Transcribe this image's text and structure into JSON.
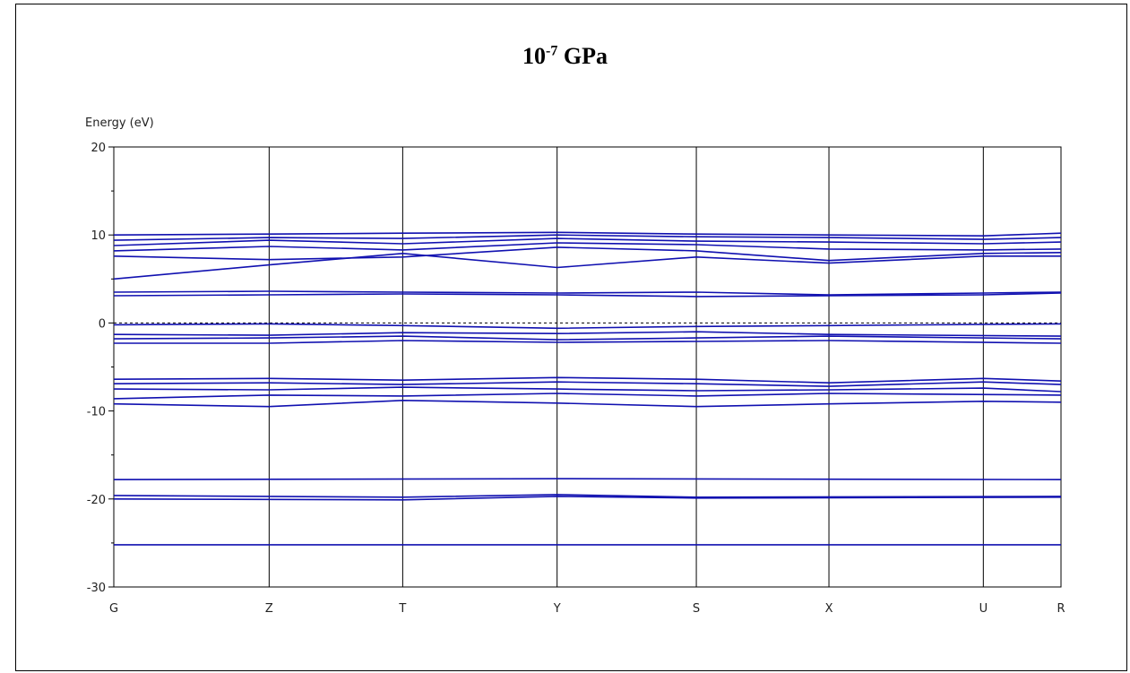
{
  "chart_data": {
    "type": "line",
    "title_base": "10",
    "title_exp": "-7",
    "title_unit": "GPa",
    "ylabel": "Energy (eV)",
    "ylim": [
      -30,
      20
    ],
    "yticks": [
      20,
      10,
      0,
      -10,
      -20,
      -30
    ],
    "kpoints": [
      {
        "label": "G",
        "pos": 0.0
      },
      {
        "label": "Z",
        "pos": 0.164
      },
      {
        "label": "T",
        "pos": 0.305
      },
      {
        "label": "Y",
        "pos": 0.468
      },
      {
        "label": "S",
        "pos": 0.615
      },
      {
        "label": "X",
        "pos": 0.755
      },
      {
        "label": "U",
        "pos": 0.918
      },
      {
        "label": "R",
        "pos": 1.0
      }
    ],
    "fermi_level": 0,
    "line_color": "#1010b0",
    "bands": [
      {
        "name": "band-1",
        "x": [
          0,
          0.468,
          1
        ],
        "y": [
          -25.2,
          -25.2,
          -25.2
        ]
      },
      {
        "name": "band-2",
        "x": [
          0,
          0.305,
          0.468,
          0.615,
          1
        ],
        "y": [
          -20.0,
          -20.1,
          -19.7,
          -19.9,
          -19.8
        ]
      },
      {
        "name": "band-3",
        "x": [
          0,
          0.305,
          0.468,
          0.615,
          1
        ],
        "y": [
          -19.6,
          -19.8,
          -19.5,
          -19.8,
          -19.7
        ]
      },
      {
        "name": "band-4",
        "x": [
          0,
          0.468,
          1
        ],
        "y": [
          -17.8,
          -17.7,
          -17.8
        ]
      },
      {
        "name": "band-5",
        "x": [
          0,
          0.164,
          0.305,
          0.468,
          0.615,
          0.755,
          0.918,
          1
        ],
        "y": [
          -9.2,
          -9.5,
          -8.8,
          -9.1,
          -9.5,
          -9.2,
          -8.9,
          -9.0
        ]
      },
      {
        "name": "band-6",
        "x": [
          0,
          0.164,
          0.305,
          0.468,
          0.615,
          0.755,
          1
        ],
        "y": [
          -8.6,
          -8.2,
          -8.3,
          -8.0,
          -8.3,
          -8.0,
          -8.2
        ]
      },
      {
        "name": "band-7",
        "x": [
          0,
          0.164,
          0.305,
          0.468,
          0.615,
          0.755,
          0.918,
          1
        ],
        "y": [
          -7.5,
          -7.6,
          -7.3,
          -7.5,
          -7.7,
          -7.6,
          -7.4,
          -7.8
        ]
      },
      {
        "name": "band-8",
        "x": [
          0,
          0.164,
          0.305,
          0.468,
          0.615,
          0.755,
          0.918,
          1
        ],
        "y": [
          -6.9,
          -6.8,
          -7.0,
          -6.7,
          -6.9,
          -7.2,
          -6.7,
          -7.0
        ]
      },
      {
        "name": "band-9",
        "x": [
          0,
          0.164,
          0.305,
          0.468,
          0.615,
          0.755,
          0.918,
          1
        ],
        "y": [
          -6.4,
          -6.3,
          -6.5,
          -6.2,
          -6.4,
          -6.8,
          -6.3,
          -6.6
        ]
      },
      {
        "name": "band-10",
        "x": [
          0,
          0.164,
          0.305,
          0.468,
          0.615,
          0.755,
          1
        ],
        "y": [
          -2.3,
          -2.3,
          -2.0,
          -2.2,
          -2.1,
          -2.0,
          -2.3
        ]
      },
      {
        "name": "band-11",
        "x": [
          0,
          0.164,
          0.305,
          0.468,
          0.615,
          0.755,
          1
        ],
        "y": [
          -1.8,
          -1.7,
          -1.5,
          -1.9,
          -1.7,
          -1.5,
          -1.8
        ]
      },
      {
        "name": "band-12",
        "x": [
          0,
          0.164,
          0.305,
          0.468,
          0.615,
          0.755,
          1
        ],
        "y": [
          -1.3,
          -1.4,
          -1.1,
          -1.2,
          -1.0,
          -1.3,
          -1.5
        ]
      },
      {
        "name": "band-13",
        "x": [
          0,
          0.164,
          0.305,
          0.468,
          0.615,
          0.755,
          1
        ],
        "y": [
          -0.2,
          -0.1,
          -0.3,
          -0.6,
          -0.4,
          -0.3,
          -0.1
        ]
      },
      {
        "name": "band-14",
        "x": [
          0,
          0.164,
          0.305,
          0.468,
          0.615,
          0.755,
          0.918,
          1
        ],
        "y": [
          3.5,
          3.6,
          3.5,
          3.4,
          3.5,
          3.2,
          3.4,
          3.5
        ]
      },
      {
        "name": "band-15",
        "x": [
          0,
          0.164,
          0.305,
          0.468,
          0.615,
          0.755,
          0.918,
          1
        ],
        "y": [
          3.1,
          3.2,
          3.3,
          3.2,
          3.0,
          3.1,
          3.2,
          3.4
        ]
      },
      {
        "name": "band-16",
        "x": [
          0,
          0.164,
          0.305,
          0.468,
          0.615,
          0.755,
          0.918,
          1
        ],
        "y": [
          5.0,
          6.6,
          7.9,
          6.3,
          7.5,
          6.8,
          7.6,
          7.6
        ]
      },
      {
        "name": "band-17",
        "x": [
          0,
          0.164,
          0.305,
          0.468,
          0.615,
          0.755,
          0.918,
          1
        ],
        "y": [
          7.6,
          7.2,
          7.5,
          8.6,
          8.2,
          7.1,
          7.9,
          8.0
        ]
      },
      {
        "name": "band-18",
        "x": [
          0,
          0.164,
          0.305,
          0.468,
          0.615,
          0.755,
          0.918,
          1
        ],
        "y": [
          8.2,
          8.7,
          8.3,
          9.1,
          8.9,
          8.4,
          8.3,
          8.4
        ]
      },
      {
        "name": "band-19",
        "x": [
          0,
          0.164,
          0.305,
          0.468,
          0.615,
          0.755,
          0.918,
          1
        ],
        "y": [
          8.8,
          9.4,
          9.0,
          9.6,
          9.3,
          9.2,
          9.0,
          9.2
        ]
      },
      {
        "name": "band-20",
        "x": [
          0,
          0.164,
          0.305,
          0.468,
          0.615,
          0.755,
          0.918,
          1
        ],
        "y": [
          9.4,
          9.7,
          9.6,
          10.0,
          9.8,
          9.7,
          9.5,
          9.7
        ]
      },
      {
        "name": "band-21",
        "x": [
          0,
          0.164,
          0.305,
          0.468,
          0.615,
          0.755,
          0.918,
          1
        ],
        "y": [
          10.0,
          10.1,
          10.2,
          10.3,
          10.1,
          10.0,
          9.9,
          10.2
        ]
      }
    ]
  }
}
